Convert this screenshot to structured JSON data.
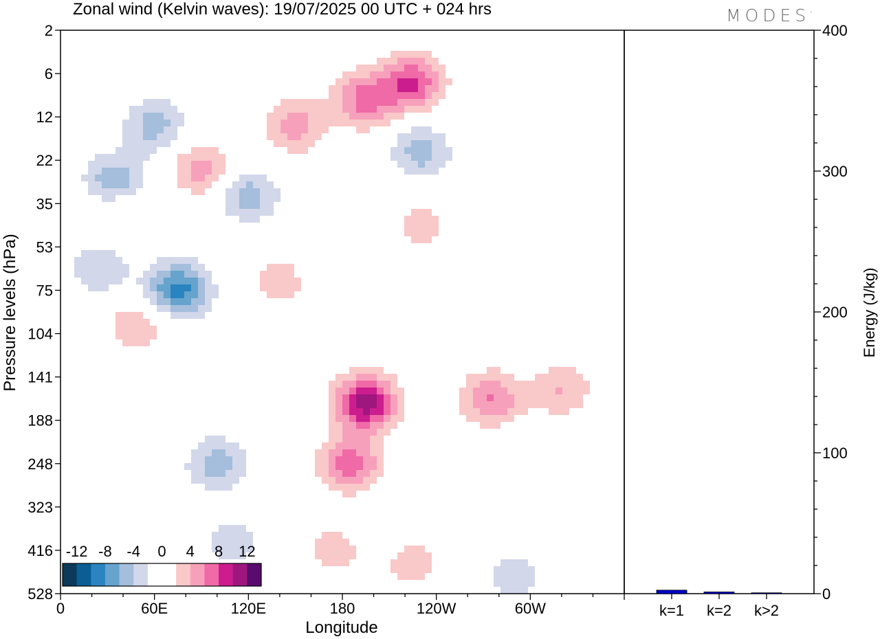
{
  "title": "Zonal wind (Kelvin waves):  19/07/2025  00 UTC  + 024 hrs",
  "brand": "MODES",
  "brand_mark": "°",
  "chart_data": [
    {
      "type": "heatmap",
      "variable": "Zonal wind (Kelvin waves)",
      "xlabel": "Longitude",
      "ylabel": "Pressure levels (hPa)",
      "x_ticks": [
        "0",
        "60E",
        "120E",
        "180",
        "120W",
        "60W"
      ],
      "y_ticks": [
        "2",
        "6",
        "12",
        "22",
        "35",
        "53",
        "75",
        "104",
        "141",
        "188",
        "248",
        "323",
        "416",
        "528"
      ],
      "colorbar": {
        "labels": [
          "-12",
          "-8",
          "-4",
          "0",
          "4",
          "8",
          "12"
        ],
        "colors": [
          "#0b3a5a",
          "#0a5e93",
          "#2a84bf",
          "#66a3cd",
          "#a4bedc",
          "#d2d7ea",
          "#ffffff",
          "#ffffff",
          "#f9c8c8",
          "#f7a0bb",
          "#ef6aa6",
          "#cc1d8e",
          "#9d177f",
          "#5a0b6e"
        ]
      },
      "blobs": [
        {
          "lon": 75,
          "lev": 6,
          "value": -9
        },
        {
          "lon": 35,
          "lev": 3.5,
          "value": -6
        },
        {
          "lon": 60,
          "lev": 2.2,
          "value": -5
        },
        {
          "lon": 195,
          "lev": 1.6,
          "value": 7
        },
        {
          "lon": 225,
          "lev": 1.2,
          "value": 8
        },
        {
          "lon": 150,
          "lev": 2.2,
          "value": 5
        },
        {
          "lon": 90,
          "lev": 3.2,
          "value": 5
        },
        {
          "lon": 40,
          "lev": 4.2,
          "value": 3
        },
        {
          "lon": 120,
          "lev": 3.8,
          "value": -5
        },
        {
          "lon": 230,
          "lev": 2.8,
          "value": -5
        },
        {
          "lon": 25,
          "lev": 5.5,
          "value": -4
        },
        {
          "lon": 195,
          "lev": 8.6,
          "value": 11
        },
        {
          "lon": 185,
          "lev": 10,
          "value": 7
        },
        {
          "lon": 175,
          "lev": 12,
          "value": 3
        },
        {
          "lon": 225,
          "lev": 12.3,
          "value": 3
        },
        {
          "lon": 275,
          "lev": 8.5,
          "value": 6
        },
        {
          "lon": 320,
          "lev": 8.3,
          "value": 4
        },
        {
          "lon": 100,
          "lev": 10,
          "value": -5
        },
        {
          "lon": 110,
          "lev": 11.8,
          "value": -3
        },
        {
          "lon": 290,
          "lev": 12.6,
          "value": -3
        },
        {
          "lon": 50,
          "lev": 6.8,
          "value": 4
        },
        {
          "lon": 230,
          "lev": 4.5,
          "value": 3
        },
        {
          "lon": 140,
          "lev": 5.8,
          "value": 3
        }
      ]
    },
    {
      "type": "bar",
      "categories": [
        "k=1",
        "k=2",
        "k>2"
      ],
      "values": [
        2.5,
        1.2,
        0.6
      ],
      "ylabel": "Energy (J/kg)",
      "y_ticks": [
        "0",
        "100",
        "200",
        "300",
        "400"
      ],
      "ylim": [
        0,
        400
      ],
      "bar_color": "#0000cc"
    }
  ]
}
